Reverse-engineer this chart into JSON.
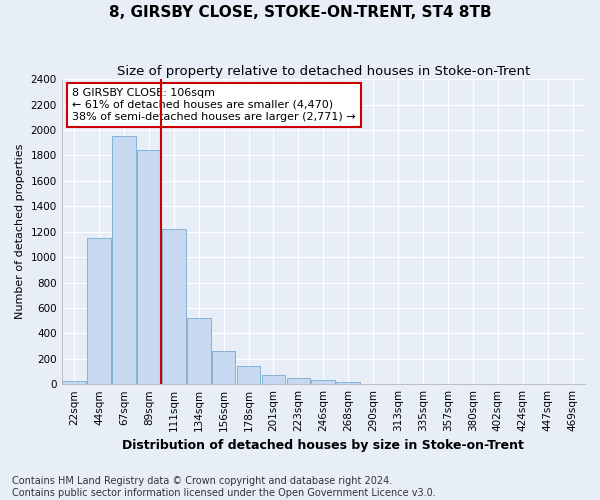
{
  "title": "8, GIRSBY CLOSE, STOKE-ON-TRENT, ST4 8TB",
  "subtitle": "Size of property relative to detached houses in Stoke-on-Trent",
  "xlabel": "Distribution of detached houses by size in Stoke-on-Trent",
  "ylabel": "Number of detached properties",
  "categories": [
    "22sqm",
    "44sqm",
    "67sqm",
    "89sqm",
    "111sqm",
    "134sqm",
    "156sqm",
    "178sqm",
    "201sqm",
    "223sqm",
    "246sqm",
    "268sqm",
    "290sqm",
    "313sqm",
    "335sqm",
    "357sqm",
    "380sqm",
    "402sqm",
    "424sqm",
    "447sqm",
    "469sqm"
  ],
  "values": [
    25,
    1150,
    1950,
    1840,
    1220,
    520,
    265,
    145,
    75,
    50,
    35,
    20,
    5,
    1,
    1,
    0,
    0,
    0,
    0,
    0,
    0
  ],
  "bar_color": "#c6d9f0",
  "bar_edge_color": "#7aaad0",
  "vline_x_index": 4,
  "vline_color": "#cc0000",
  "annotation_line1": "8 GIRSBY CLOSE: 106sqm",
  "annotation_line2": "← 61% of detached houses are smaller (4,470)",
  "annotation_line3": "38% of semi-detached houses are larger (2,771) →",
  "annotation_box_color": "#cc0000",
  "ylim": [
    0,
    2400
  ],
  "yticks": [
    0,
    200,
    400,
    600,
    800,
    1000,
    1200,
    1400,
    1600,
    1800,
    2000,
    2200,
    2400
  ],
  "footer_line1": "Contains HM Land Registry data © Crown copyright and database right 2024.",
  "footer_line2": "Contains public sector information licensed under the Open Government Licence v3.0.",
  "fig_bg_color": "#e8eef8",
  "plot_bg_color": "#e8eef8",
  "grid_color": "#ffffff",
  "title_fontsize": 11,
  "subtitle_fontsize": 9.5,
  "xlabel_fontsize": 9,
  "ylabel_fontsize": 8,
  "tick_fontsize": 7.5,
  "annotation_fontsize": 8,
  "footer_fontsize": 7
}
